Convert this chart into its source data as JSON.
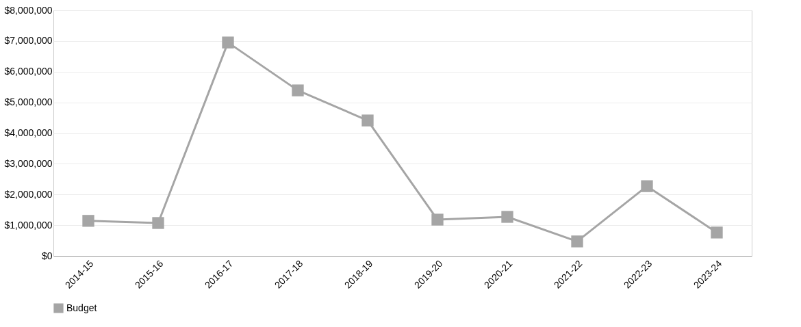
{
  "chart_data": {
    "type": "line",
    "categories": [
      "2014-15",
      "2015-16",
      "2016-17",
      "2017-18",
      "2018-19",
      "2019-20",
      "2020-21",
      "2021-22",
      "2022-23",
      "2023-24"
    ],
    "series": [
      {
        "name": "Budget",
        "color": "#a5a5a5",
        "values": [
          1140000,
          1070000,
          6950000,
          5390000,
          4410000,
          1180000,
          1270000,
          470000,
          2270000,
          760000
        ]
      }
    ],
    "ylim": [
      0,
      8000000
    ],
    "yticks": [
      {
        "value": 0,
        "label": "$0"
      },
      {
        "value": 1000000,
        "label": "$1,000,000"
      },
      {
        "value": 2000000,
        "label": "$2,000,000"
      },
      {
        "value": 3000000,
        "label": "$3,000,000"
      },
      {
        "value": 4000000,
        "label": "$4,000,000"
      },
      {
        "value": 5000000,
        "label": "$5,000,000"
      },
      {
        "value": 6000000,
        "label": "$6,000,000"
      },
      {
        "value": 7000000,
        "label": "$7,000,000"
      },
      {
        "value": 8000000,
        "label": "$8,000,000"
      }
    ],
    "grid": "y",
    "legend": "bottom",
    "marker": "square",
    "line_style": "solid"
  }
}
